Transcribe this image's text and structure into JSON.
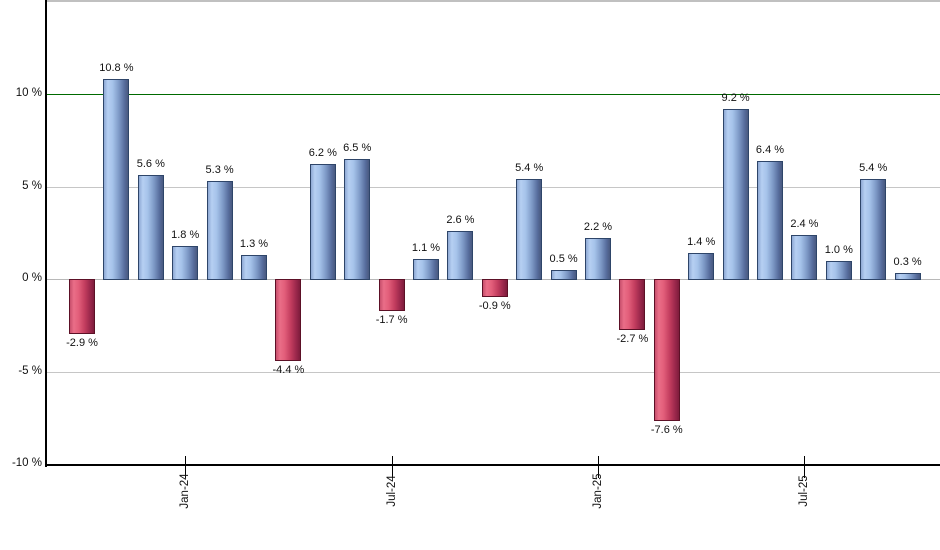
{
  "chart_data": {
    "type": "bar",
    "title": "",
    "unit": "%",
    "values": [
      -2.9,
      10.8,
      5.6,
      1.8,
      5.3,
      1.3,
      -4.4,
      6.2,
      6.5,
      -1.7,
      1.1,
      2.6,
      -0.9,
      5.4,
      0.5,
      2.2,
      -2.7,
      -7.6,
      1.4,
      9.2,
      6.4,
      2.4,
      1.0,
      5.4,
      0.3
    ],
    "bar_labels": [
      "-2.9 %",
      "10.8 %",
      "5.6 %",
      "1.8 %",
      "5.3 %",
      "1.3 %",
      "-4.4 %",
      "6.2 %",
      "6.5 %",
      "-1.7 %",
      "1.1 %",
      "2.6 %",
      "-0.9 %",
      "5.4 %",
      "0.5 %",
      "2.2 %",
      "-2.7 %",
      "-7.6 %",
      "1.4 %",
      "9.2 %",
      "6.4 %",
      "2.4 %",
      "1.0 %",
      "5.4 %",
      "0.3 %"
    ],
    "x_ticks": [
      {
        "bar_index": 3,
        "label": "Jan-24"
      },
      {
        "bar_index": 9,
        "label": "Jul-24"
      },
      {
        "bar_index": 15,
        "label": "Jan-25"
      },
      {
        "bar_index": 21,
        "label": "Jul-25"
      }
    ],
    "y_ticks": [
      {
        "value": 10,
        "label": "10 %"
      },
      {
        "value": 5,
        "label": "5 %"
      },
      {
        "value": 0,
        "label": "0 %"
      },
      {
        "value": -5,
        "label": "-5 %"
      },
      {
        "value": -10,
        "label": "-10 %"
      }
    ],
    "ylim": [
      -10,
      15
    ],
    "grid": true,
    "legend": false,
    "reference_line": {
      "value": 10,
      "color": "#006a00"
    },
    "colors": {
      "positive_bar": "#9ab8e0",
      "positive_bar_border": "#2e4569",
      "negative_bar": "#cc4466",
      "negative_bar_border": "#5c1026",
      "gridline": "#c6c6c6",
      "zero_line": "#b8b8b8",
      "plot_top_border": "#c0c0c0",
      "axis": "#000000",
      "label_text": "#111111"
    }
  }
}
